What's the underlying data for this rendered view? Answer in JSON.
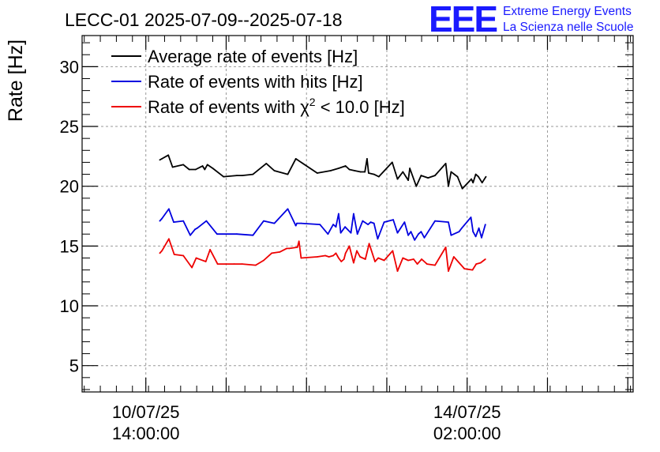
{
  "header": {
    "title": "LECC-01 2025-07-09--2025-07-18",
    "logo_letters": "EEE",
    "logo_line1": "Extreme Energy Events",
    "logo_line2": "La Scienza nelle Scuole"
  },
  "colors": {
    "logo": "#1a1aff",
    "average": "#000000",
    "hits": "#0000e0",
    "chi2": "#ee0000",
    "grid": "#9a9a9a"
  },
  "chart_data": {
    "type": "line",
    "title": "LECC-01 2025-07-09--2025-07-18",
    "ylabel": "Rate [Hz]",
    "xlabel": "",
    "x_unit": "hours since 09/07/25 00:00",
    "xlim": [
      26.1,
      129.0
    ],
    "ylim": [
      2.8,
      32.6
    ],
    "y_ticks": [
      5,
      10,
      15,
      20,
      25,
      30
    ],
    "x_ticks": [
      {
        "x": 38,
        "line1": "10/07/25",
        "line2": "14:00:00"
      },
      {
        "x": 98,
        "line1": "14/07/25",
        "line2": "02:00:00"
      }
    ],
    "grid": true,
    "legend_position": "top-left",
    "legend": [
      {
        "key": "average",
        "label": "Average rate of events [Hz]"
      },
      {
        "key": "hits",
        "label": "Rate of events with hits [Hz]"
      },
      {
        "key": "chi2",
        "label_prefix": "Rate of events with ",
        "label_symbol": "χ",
        "label_sup": "2",
        "label_suffix": " < 10.0 [Hz]"
      }
    ],
    "series": [
      {
        "name": "Average rate of events [Hz]",
        "key": "average",
        "x": [
          40.6,
          41.0,
          42.2,
          43.0,
          45.0,
          46.1,
          47.3,
          48.6,
          49.0,
          49.5,
          50.5,
          52.5,
          55.0,
          56.0,
          58.0,
          60.5,
          62.0,
          64.5,
          66.0,
          70.0,
          72.5,
          74.0,
          75.3,
          76.0,
          77.0,
          78.1,
          78.9,
          79.3,
          79.6,
          80.6,
          81.5,
          84.0,
          85.0,
          86.0,
          87.0,
          87.3,
          88.5,
          89.4,
          90.7,
          92.0,
          94.0,
          94.5,
          95.0,
          96.2,
          97.1,
          98.8,
          99.1,
          99.6,
          100.1,
          100.8,
          101.5
        ],
        "y": [
          22.2,
          22.3,
          22.6,
          21.6,
          21.8,
          21.4,
          21.4,
          21.7,
          21.4,
          21.8,
          21.5,
          20.8,
          20.9,
          20.9,
          21.0,
          21.9,
          21.3,
          21.0,
          22.3,
          21.1,
          21.3,
          21.5,
          21.7,
          21.4,
          21.3,
          21.2,
          21.2,
          22.3,
          21.1,
          21.0,
          20.8,
          22.0,
          20.6,
          21.2,
          20.5,
          21.5,
          20.0,
          20.9,
          20.7,
          20.9,
          21.9,
          20.0,
          21.2,
          20.8,
          19.8,
          20.6,
          20.3,
          21.0,
          20.8,
          20.3,
          20.8
        ]
      },
      {
        "name": "Rate of events with hits [Hz]",
        "key": "hits",
        "x": [
          40.6,
          41.0,
          42.3,
          43.2,
          45.0,
          46.3,
          47.2,
          47.6,
          49.3,
          51.3,
          55.0,
          58.0,
          60.0,
          62.0,
          64.5,
          66.0,
          66.2,
          67.0,
          70.5,
          72.0,
          73.0,
          73.5,
          74.0,
          74.4,
          75.2,
          76.3,
          76.8,
          77.5,
          78.5,
          79.5,
          80.0,
          80.6,
          81.3,
          82.5,
          84.2,
          85.0,
          86.3,
          87.0,
          87.5,
          88.2,
          88.9,
          89.4,
          90.0,
          92.0,
          94.5,
          95.0,
          96.5,
          97.0,
          98.7,
          99.1,
          99.6,
          100.2,
          100.7,
          101.4
        ],
        "y": [
          17.1,
          17.3,
          18.1,
          17.0,
          17.1,
          15.9,
          16.4,
          16.5,
          17.1,
          16.0,
          16.0,
          15.9,
          17.1,
          16.9,
          18.1,
          16.7,
          16.9,
          16.9,
          16.8,
          16.0,
          16.8,
          16.6,
          17.7,
          16.1,
          16.6,
          16.1,
          17.7,
          16.0,
          17.1,
          16.8,
          17.0,
          16.9,
          15.6,
          17.0,
          17.2,
          16.1,
          17.0,
          15.9,
          16.2,
          15.5,
          16.0,
          16.2,
          15.7,
          17.1,
          17.0,
          15.9,
          16.2,
          16.5,
          17.4,
          16.2,
          15.8,
          16.5,
          15.7,
          16.8
        ]
      },
      {
        "name": "Rate of events with χ2 < 10.0 [Hz]",
        "key": "chi2",
        "x": [
          40.6,
          41.0,
          42.3,
          43.3,
          45.0,
          46.6,
          47.4,
          49.2,
          50.0,
          51.4,
          54.5,
          56.0,
          58.5,
          60.0,
          61.5,
          63.0,
          64.3,
          64.8,
          66.3,
          66.6,
          67.0,
          70.0,
          71.5,
          72.2,
          73.0,
          73.5,
          74.0,
          74.5,
          75.0,
          75.3,
          76.0,
          76.8,
          77.4,
          78.0,
          79.0,
          79.7,
          80.8,
          81.4,
          82.5,
          84.1,
          85.0,
          86.0,
          87.0,
          88.0,
          88.7,
          89.5,
          90.5,
          92.0,
          94.0,
          94.5,
          95.5,
          97.5,
          99.0,
          99.7,
          100.5,
          101.4
        ],
        "y": [
          14.4,
          14.6,
          15.6,
          14.3,
          14.2,
          13.2,
          14.0,
          13.7,
          14.7,
          13.5,
          13.5,
          13.5,
          13.4,
          13.8,
          14.4,
          14.5,
          14.8,
          14.8,
          14.9,
          15.4,
          14.0,
          14.1,
          14.2,
          14.1,
          14.2,
          14.4,
          14.0,
          13.7,
          13.9,
          14.4,
          15.0,
          13.6,
          14.6,
          14.1,
          13.9,
          15.2,
          13.7,
          14.0,
          13.8,
          14.6,
          12.9,
          14.0,
          13.8,
          13.9,
          13.5,
          13.9,
          13.5,
          13.4,
          14.9,
          12.9,
          14.1,
          13.1,
          13.0,
          13.5,
          13.6,
          13.9
        ]
      }
    ]
  }
}
